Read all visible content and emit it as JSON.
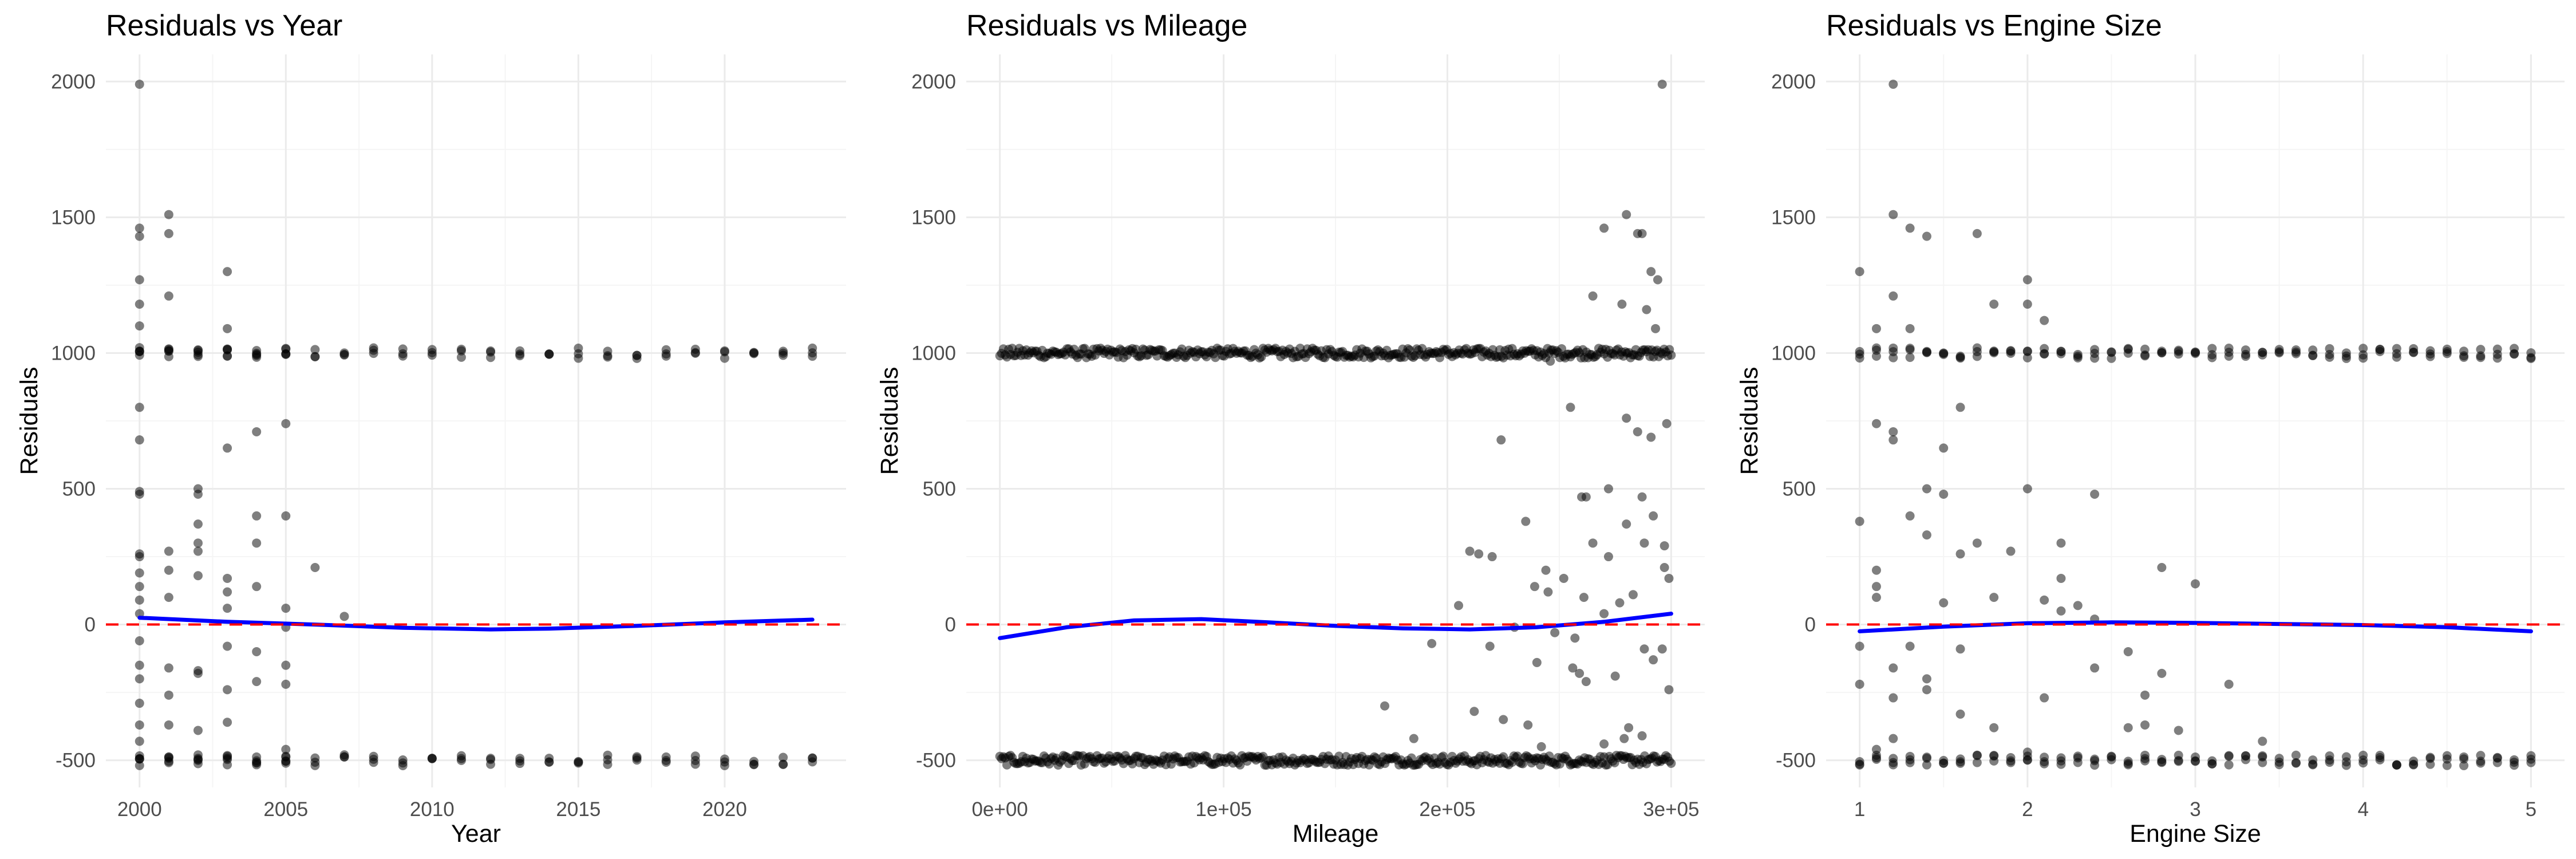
{
  "colors": {
    "points": "#000000",
    "smooth": "#0000ff",
    "zero_line": "#ff0000",
    "grid": "#ebebeb"
  },
  "chart_data": [
    {
      "type": "scatter",
      "title": "Residuals vs Year",
      "xlabel": "Year",
      "ylabel": "Residuals",
      "xlim": [
        1998.85,
        2024.15
      ],
      "ylim": [
        -600,
        2100
      ],
      "x_ticks": [
        2000,
        2005,
        2010,
        2015,
        2020
      ],
      "x_tick_labels": [
        "2000",
        "2005",
        "2010",
        "2015",
        "2020"
      ],
      "y_ticks": [
        -500,
        0,
        500,
        1000,
        1500,
        2000
      ],
      "y_tick_labels": [
        "-500",
        "0",
        "500",
        "1000",
        "1500",
        "2000"
      ],
      "grid": true,
      "reference_line": {
        "y": 0,
        "style": "dashed",
        "color": "#ff0000"
      },
      "points": {
        "band_upper": {
          "y": 1000,
          "x": [
            2000,
            2001,
            2002,
            2003,
            2004,
            2005,
            2006,
            2007,
            2008,
            2009,
            2010,
            2011,
            2012,
            2013,
            2014,
            2015,
            2016,
            2017,
            2018,
            2019,
            2020,
            2021,
            2022,
            2023
          ]
        },
        "band_lower": {
          "y": -500,
          "x": [
            2000,
            2001,
            2002,
            2003,
            2004,
            2005,
            2006,
            2007,
            2008,
            2009,
            2010,
            2011,
            2012,
            2013,
            2014,
            2015,
            2016,
            2017,
            2018,
            2019,
            2020,
            2021,
            2022,
            2023
          ]
        },
        "scattered": [
          [
            2000,
            1990
          ],
          [
            2000,
            1460
          ],
          [
            2000,
            1430
          ],
          [
            2000,
            1270
          ],
          [
            2000,
            1180
          ],
          [
            2000,
            1100
          ],
          [
            2000,
            800
          ],
          [
            2000,
            680
          ],
          [
            2000,
            490
          ],
          [
            2000,
            480
          ],
          [
            2000,
            260
          ],
          [
            2000,
            250
          ],
          [
            2000,
            190
          ],
          [
            2000,
            140
          ],
          [
            2000,
            90
          ],
          [
            2000,
            40
          ],
          [
            2000,
            -60
          ],
          [
            2000,
            -150
          ],
          [
            2000,
            -200
          ],
          [
            2000,
            -290
          ],
          [
            2000,
            -370
          ],
          [
            2000,
            -430
          ],
          [
            2001,
            1510
          ],
          [
            2001,
            1440
          ],
          [
            2001,
            1210
          ],
          [
            2001,
            270
          ],
          [
            2001,
            200
          ],
          [
            2001,
            100
          ],
          [
            2001,
            -160
          ],
          [
            2001,
            -260
          ],
          [
            2001,
            -370
          ],
          [
            2002,
            500
          ],
          [
            2002,
            480
          ],
          [
            2002,
            370
          ],
          [
            2002,
            300
          ],
          [
            2002,
            270
          ],
          [
            2002,
            180
          ],
          [
            2002,
            -170
          ],
          [
            2002,
            -180
          ],
          [
            2002,
            -390
          ],
          [
            2003,
            1300
          ],
          [
            2003,
            1090
          ],
          [
            2003,
            650
          ],
          [
            2003,
            170
          ],
          [
            2003,
            120
          ],
          [
            2003,
            60
          ],
          [
            2003,
            -80
          ],
          [
            2003,
            -240
          ],
          [
            2003,
            -360
          ],
          [
            2004,
            710
          ],
          [
            2004,
            400
          ],
          [
            2004,
            300
          ],
          [
            2004,
            140
          ],
          [
            2004,
            -100
          ],
          [
            2004,
            -210
          ],
          [
            2005,
            740
          ],
          [
            2005,
            400
          ],
          [
            2005,
            60
          ],
          [
            2005,
            -10
          ],
          [
            2005,
            -150
          ],
          [
            2005,
            -220
          ],
          [
            2005,
            -460
          ],
          [
            2006,
            210
          ],
          [
            2007,
            30
          ]
        ]
      },
      "smooth": {
        "x": [
          2000,
          2003,
          2006,
          2009,
          2012,
          2014,
          2017,
          2020,
          2023
        ],
        "y": [
          25,
          10,
          0,
          -12,
          -18,
          -15,
          -5,
          8,
          18
        ]
      }
    },
    {
      "type": "scatter",
      "title": "Residuals vs Mileage",
      "xlabel": "Mileage",
      "ylabel": "Residuals",
      "xlim": [
        -15000,
        315000
      ],
      "ylim": [
        -600,
        2100
      ],
      "x_ticks": [
        0,
        100000,
        200000,
        300000
      ],
      "x_tick_labels": [
        "0e+00",
        "1e+05",
        "2e+05",
        "3e+05"
      ],
      "y_ticks": [
        -500,
        0,
        500,
        1000,
        1500,
        2000
      ],
      "y_tick_labels": [
        "-500",
        "0",
        "500",
        "1000",
        "1500",
        "2000"
      ],
      "grid": true,
      "reference_line": {
        "y": 0,
        "style": "dashed",
        "color": "#ff0000"
      },
      "points": {
        "band_upper": {
          "y": 1000,
          "x_range": [
            0,
            300000
          ]
        },
        "band_lower": {
          "y": -500,
          "x_range": [
            0,
            300000
          ]
        },
        "scattered": [
          [
            296000,
            1990
          ],
          [
            280000,
            1510
          ],
          [
            270000,
            1460
          ],
          [
            285000,
            1440
          ],
          [
            287000,
            1440
          ],
          [
            291000,
            1300
          ],
          [
            294000,
            1270
          ],
          [
            265000,
            1210
          ],
          [
            278000,
            1180
          ],
          [
            289000,
            1160
          ],
          [
            293000,
            1090
          ],
          [
            246000,
            970
          ],
          [
            255000,
            800
          ],
          [
            280000,
            760
          ],
          [
            285000,
            710
          ],
          [
            291000,
            690
          ],
          [
            224000,
            680
          ],
          [
            298000,
            740
          ],
          [
            272000,
            500
          ],
          [
            260000,
            470
          ],
          [
            262000,
            470
          ],
          [
            287000,
            470
          ],
          [
            292000,
            400
          ],
          [
            235000,
            380
          ],
          [
            280000,
            370
          ],
          [
            265000,
            300
          ],
          [
            288000,
            300
          ],
          [
            297000,
            290
          ],
          [
            272000,
            250
          ],
          [
            210000,
            270
          ],
          [
            214000,
            260
          ],
          [
            220000,
            250
          ],
          [
            244000,
            200
          ],
          [
            252000,
            170
          ],
          [
            239000,
            140
          ],
          [
            245000,
            120
          ],
          [
            261000,
            100
          ],
          [
            277000,
            80
          ],
          [
            283000,
            110
          ],
          [
            297000,
            210
          ],
          [
            299000,
            170
          ],
          [
            270000,
            40
          ],
          [
            205000,
            70
          ],
          [
            230000,
            -10
          ],
          [
            248000,
            -30
          ],
          [
            257000,
            -50
          ],
          [
            219000,
            -80
          ],
          [
            193000,
            -70
          ],
          [
            288000,
            -90
          ],
          [
            296000,
            -90
          ],
          [
            240000,
            -140
          ],
          [
            256000,
            -160
          ],
          [
            259000,
            -180
          ],
          [
            262000,
            -210
          ],
          [
            275000,
            -190
          ],
          [
            299000,
            -240
          ],
          [
            292000,
            -130
          ],
          [
            172000,
            -300
          ],
          [
            212000,
            -320
          ],
          [
            225000,
            -350
          ],
          [
            236000,
            -370
          ],
          [
            281000,
            -380
          ],
          [
            270000,
            -440
          ],
          [
            242000,
            -450
          ],
          [
            185000,
            -420
          ],
          [
            279000,
            -420
          ],
          [
            287000,
            -410
          ]
        ]
      },
      "smooth": {
        "x": [
          0,
          30000,
          60000,
          90000,
          120000,
          150000,
          180000,
          210000,
          240000,
          270000,
          300000
        ],
        "y": [
          -50,
          -10,
          15,
          20,
          8,
          -5,
          -14,
          -18,
          -10,
          10,
          40
        ]
      }
    },
    {
      "type": "scatter",
      "title": "Residuals vs Engine Size",
      "xlabel": "Engine Size",
      "ylabel": "Residuals",
      "xlim": [
        0.8,
        5.2
      ],
      "ylim": [
        -600,
        2100
      ],
      "x_ticks": [
        1,
        2,
        3,
        4,
        5
      ],
      "x_tick_labels": [
        "1",
        "2",
        "3",
        "4",
        "5"
      ],
      "y_ticks": [
        -500,
        0,
        500,
        1000,
        1500,
        2000
      ],
      "y_tick_labels": [
        "-500",
        "0",
        "500",
        "1000",
        "1500",
        "2000"
      ],
      "grid": true,
      "reference_line": {
        "y": 0,
        "style": "dashed",
        "color": "#ff0000"
      },
      "points": {
        "band_upper": {
          "y": 1000,
          "x_range": [
            1.0,
            5.0
          ],
          "x_step": 0.1
        },
        "band_lower": {
          "y": -500,
          "x_range": [
            1.0,
            5.0
          ],
          "x_step": 0.1
        },
        "scattered": [
          [
            1.2,
            1990
          ],
          [
            1.2,
            1510
          ],
          [
            1.3,
            1460
          ],
          [
            1.4,
            1430
          ],
          [
            1.0,
            1300
          ],
          [
            1.2,
            1210
          ],
          [
            1.7,
            1440
          ],
          [
            2.0,
            1270
          ],
          [
            2.0,
            1180
          ],
          [
            1.8,
            1180
          ],
          [
            2.1,
            1120
          ],
          [
            1.1,
            1090
          ],
          [
            1.3,
            1090
          ],
          [
            1.1,
            740
          ],
          [
            1.2,
            710
          ],
          [
            1.2,
            680
          ],
          [
            1.5,
            650
          ],
          [
            1.6,
            800
          ],
          [
            1.0,
            380
          ],
          [
            1.3,
            400
          ],
          [
            1.4,
            500
          ],
          [
            1.5,
            480
          ],
          [
            2.0,
            500
          ],
          [
            2.4,
            480
          ],
          [
            2.2,
            300
          ],
          [
            1.4,
            330
          ],
          [
            1.6,
            260
          ],
          [
            1.7,
            300
          ],
          [
            1.9,
            270
          ],
          [
            1.1,
            200
          ],
          [
            1.1,
            140
          ],
          [
            1.1,
            100
          ],
          [
            2.2,
            170
          ],
          [
            2.3,
            70
          ],
          [
            2.1,
            90
          ],
          [
            3.0,
            150
          ],
          [
            2.8,
            210
          ],
          [
            1.5,
            80
          ],
          [
            1.8,
            100
          ],
          [
            1.3,
            -80
          ],
          [
            1.4,
            -200
          ],
          [
            1.4,
            -240
          ],
          [
            1.2,
            -270
          ],
          [
            1.2,
            -160
          ],
          [
            1.0,
            -220
          ],
          [
            1.0,
            -80
          ],
          [
            1.6,
            -90
          ],
          [
            1.8,
            -380
          ],
          [
            1.6,
            -330
          ],
          [
            2.1,
            -270
          ],
          [
            2.0,
            -470
          ],
          [
            1.1,
            -460
          ],
          [
            1.2,
            -420
          ],
          [
            2.4,
            -160
          ],
          [
            2.6,
            -380
          ],
          [
            2.7,
            -260
          ],
          [
            2.8,
            -180
          ],
          [
            2.7,
            -370
          ],
          [
            2.9,
            -390
          ],
          [
            3.2,
            -220
          ],
          [
            3.4,
            -430
          ],
          [
            2.6,
            -100
          ],
          [
            2.2,
            50
          ],
          [
            2.4,
            20
          ]
        ]
      },
      "smooth": {
        "x": [
          1.0,
          1.5,
          2.0,
          2.5,
          3.0,
          3.5,
          4.0,
          4.5,
          5.0
        ],
        "y": [
          -25,
          -8,
          5,
          8,
          6,
          2,
          -2,
          -10,
          -25
        ]
      }
    }
  ]
}
